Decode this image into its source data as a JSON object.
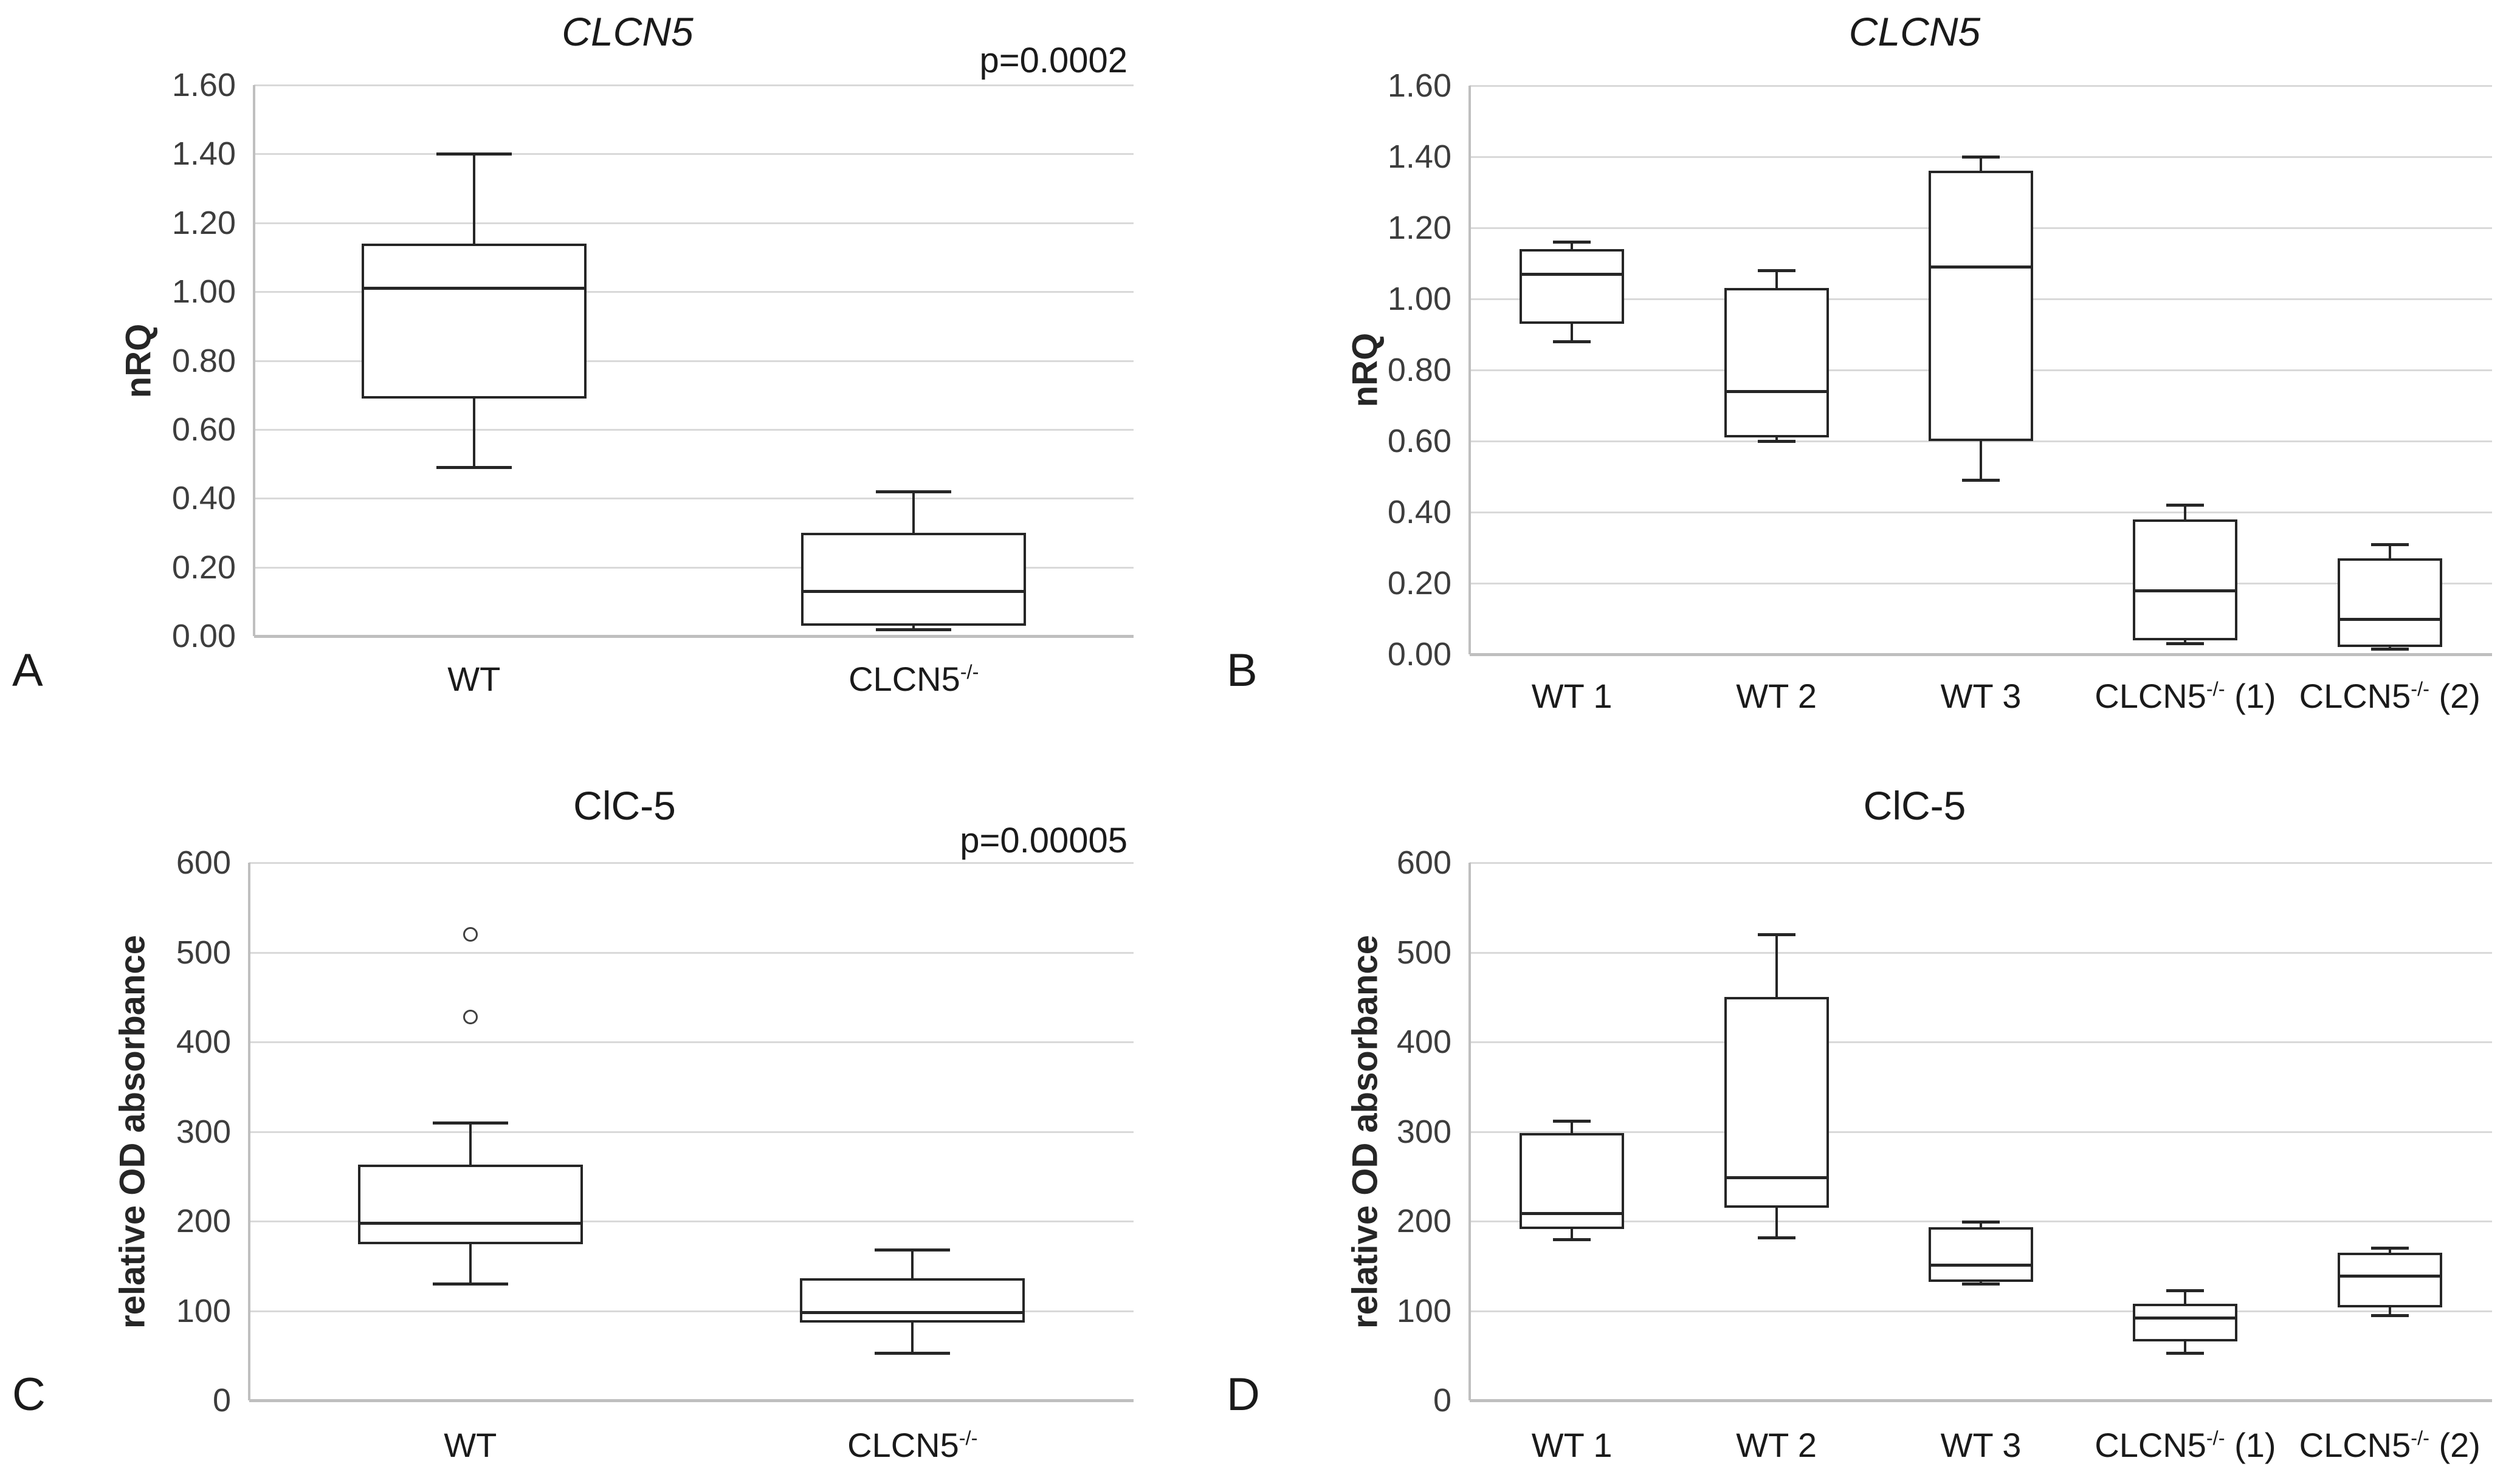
{
  "colors": {
    "background": "#ffffff",
    "box_line": "#262626",
    "gridline": "#d9d9d9",
    "axis_line": "#bfbfbf",
    "tick_text": "#3d3d3d",
    "label_text": "#1a1a1a"
  },
  "chart_data": [
    {
      "id": "A",
      "type": "box",
      "panel_label": "A",
      "title": "CLCN5",
      "title_italic": true,
      "p_value_label": "p=0.0002",
      "ylabel": "nRQ",
      "ylim": [
        0.0,
        1.6
      ],
      "ytick_step": 0.2,
      "ytick_decimals": 2,
      "grid": true,
      "categories": [
        {
          "base": "WT",
          "sup": "",
          "rest": ""
        },
        {
          "base": "CLCN5",
          "sup": "-/-",
          "rest": ""
        }
      ],
      "series": [
        {
          "name": "WT",
          "min": 0.49,
          "q1": 0.69,
          "median": 1.01,
          "q3": 1.14,
          "max": 1.4,
          "outliers": []
        },
        {
          "name": "CLCN5-/-",
          "min": 0.02,
          "q1": 0.03,
          "median": 0.13,
          "q3": 0.3,
          "max": 0.42,
          "outliers": []
        }
      ]
    },
    {
      "id": "B",
      "type": "box",
      "panel_label": "B",
      "title": "CLCN5",
      "title_italic": true,
      "p_value_label": "",
      "ylabel": "nRQ",
      "ylim": [
        0.0,
        1.6
      ],
      "ytick_step": 0.2,
      "ytick_decimals": 2,
      "grid": true,
      "categories": [
        {
          "base": "WT 1",
          "sup": "",
          "rest": ""
        },
        {
          "base": "WT 2",
          "sup": "",
          "rest": ""
        },
        {
          "base": "WT 3",
          "sup": "",
          "rest": ""
        },
        {
          "base": "CLCN5",
          "sup": "-/-",
          "rest": " (1)"
        },
        {
          "base": "CLCN5",
          "sup": "-/-",
          "rest": " (2)"
        }
      ],
      "series": [
        {
          "name": "WT 1",
          "min": 0.88,
          "q1": 0.93,
          "median": 1.07,
          "q3": 1.14,
          "max": 1.16,
          "outliers": []
        },
        {
          "name": "WT 2",
          "min": 0.6,
          "q1": 0.61,
          "median": 0.74,
          "q3": 1.03,
          "max": 1.08,
          "outliers": []
        },
        {
          "name": "WT 3",
          "min": 0.49,
          "q1": 0.6,
          "median": 1.09,
          "q3": 1.36,
          "max": 1.4,
          "outliers": []
        },
        {
          "name": "CLCN5-/- (1)",
          "min": 0.03,
          "q1": 0.04,
          "median": 0.18,
          "q3": 0.38,
          "max": 0.42,
          "outliers": []
        },
        {
          "name": "CLCN5-/- (2)",
          "min": 0.015,
          "q1": 0.02,
          "median": 0.1,
          "q3": 0.27,
          "max": 0.31,
          "outliers": []
        }
      ]
    },
    {
      "id": "C",
      "type": "box",
      "panel_label": "C",
      "title": "ClC-5",
      "title_italic": false,
      "p_value_label": "p=0.00005",
      "ylabel": "relative OD absorbance",
      "ylim": [
        0,
        600
      ],
      "ytick_step": 100,
      "ytick_decimals": 0,
      "grid": true,
      "categories": [
        {
          "base": "WT",
          "sup": "",
          "rest": ""
        },
        {
          "base": "CLCN5",
          "sup": "-/-",
          "rest": ""
        }
      ],
      "series": [
        {
          "name": "WT",
          "min": 130,
          "q1": 174,
          "median": 198,
          "q3": 263,
          "max": 310,
          "outliers": [
            428,
            520
          ]
        },
        {
          "name": "CLCN5-/-",
          "min": 53,
          "q1": 87,
          "median": 98,
          "q3": 136,
          "max": 168,
          "outliers": []
        }
      ]
    },
    {
      "id": "D",
      "type": "box",
      "panel_label": "D",
      "title": "ClC-5",
      "title_italic": false,
      "p_value_label": "",
      "ylabel": "relative OD absorbance",
      "ylim": [
        0,
        600
      ],
      "ytick_step": 100,
      "ytick_decimals": 0,
      "grid": true,
      "categories": [
        {
          "base": "WT 1",
          "sup": "",
          "rest": ""
        },
        {
          "base": "WT 2",
          "sup": "",
          "rest": ""
        },
        {
          "base": "WT 3",
          "sup": "",
          "rest": ""
        },
        {
          "base": "CLCN5",
          "sup": "-/-",
          "rest": " (1)"
        },
        {
          "base": "CLCN5",
          "sup": "-/-",
          "rest": " (2)"
        }
      ],
      "series": [
        {
          "name": "WT 1",
          "min": 180,
          "q1": 191,
          "median": 209,
          "q3": 298,
          "max": 312,
          "outliers": []
        },
        {
          "name": "WT 2",
          "min": 182,
          "q1": 215,
          "median": 249,
          "q3": 450,
          "max": 520,
          "outliers": []
        },
        {
          "name": "WT 3",
          "min": 130,
          "q1": 132,
          "median": 151,
          "q3": 193,
          "max": 199,
          "outliers": []
        },
        {
          "name": "CLCN5-/- (1)",
          "min": 53,
          "q1": 66,
          "median": 92,
          "q3": 108,
          "max": 123,
          "outliers": []
        },
        {
          "name": "CLCN5-/- (2)",
          "min": 95,
          "q1": 104,
          "median": 139,
          "q3": 165,
          "max": 170,
          "outliers": []
        }
      ]
    }
  ]
}
